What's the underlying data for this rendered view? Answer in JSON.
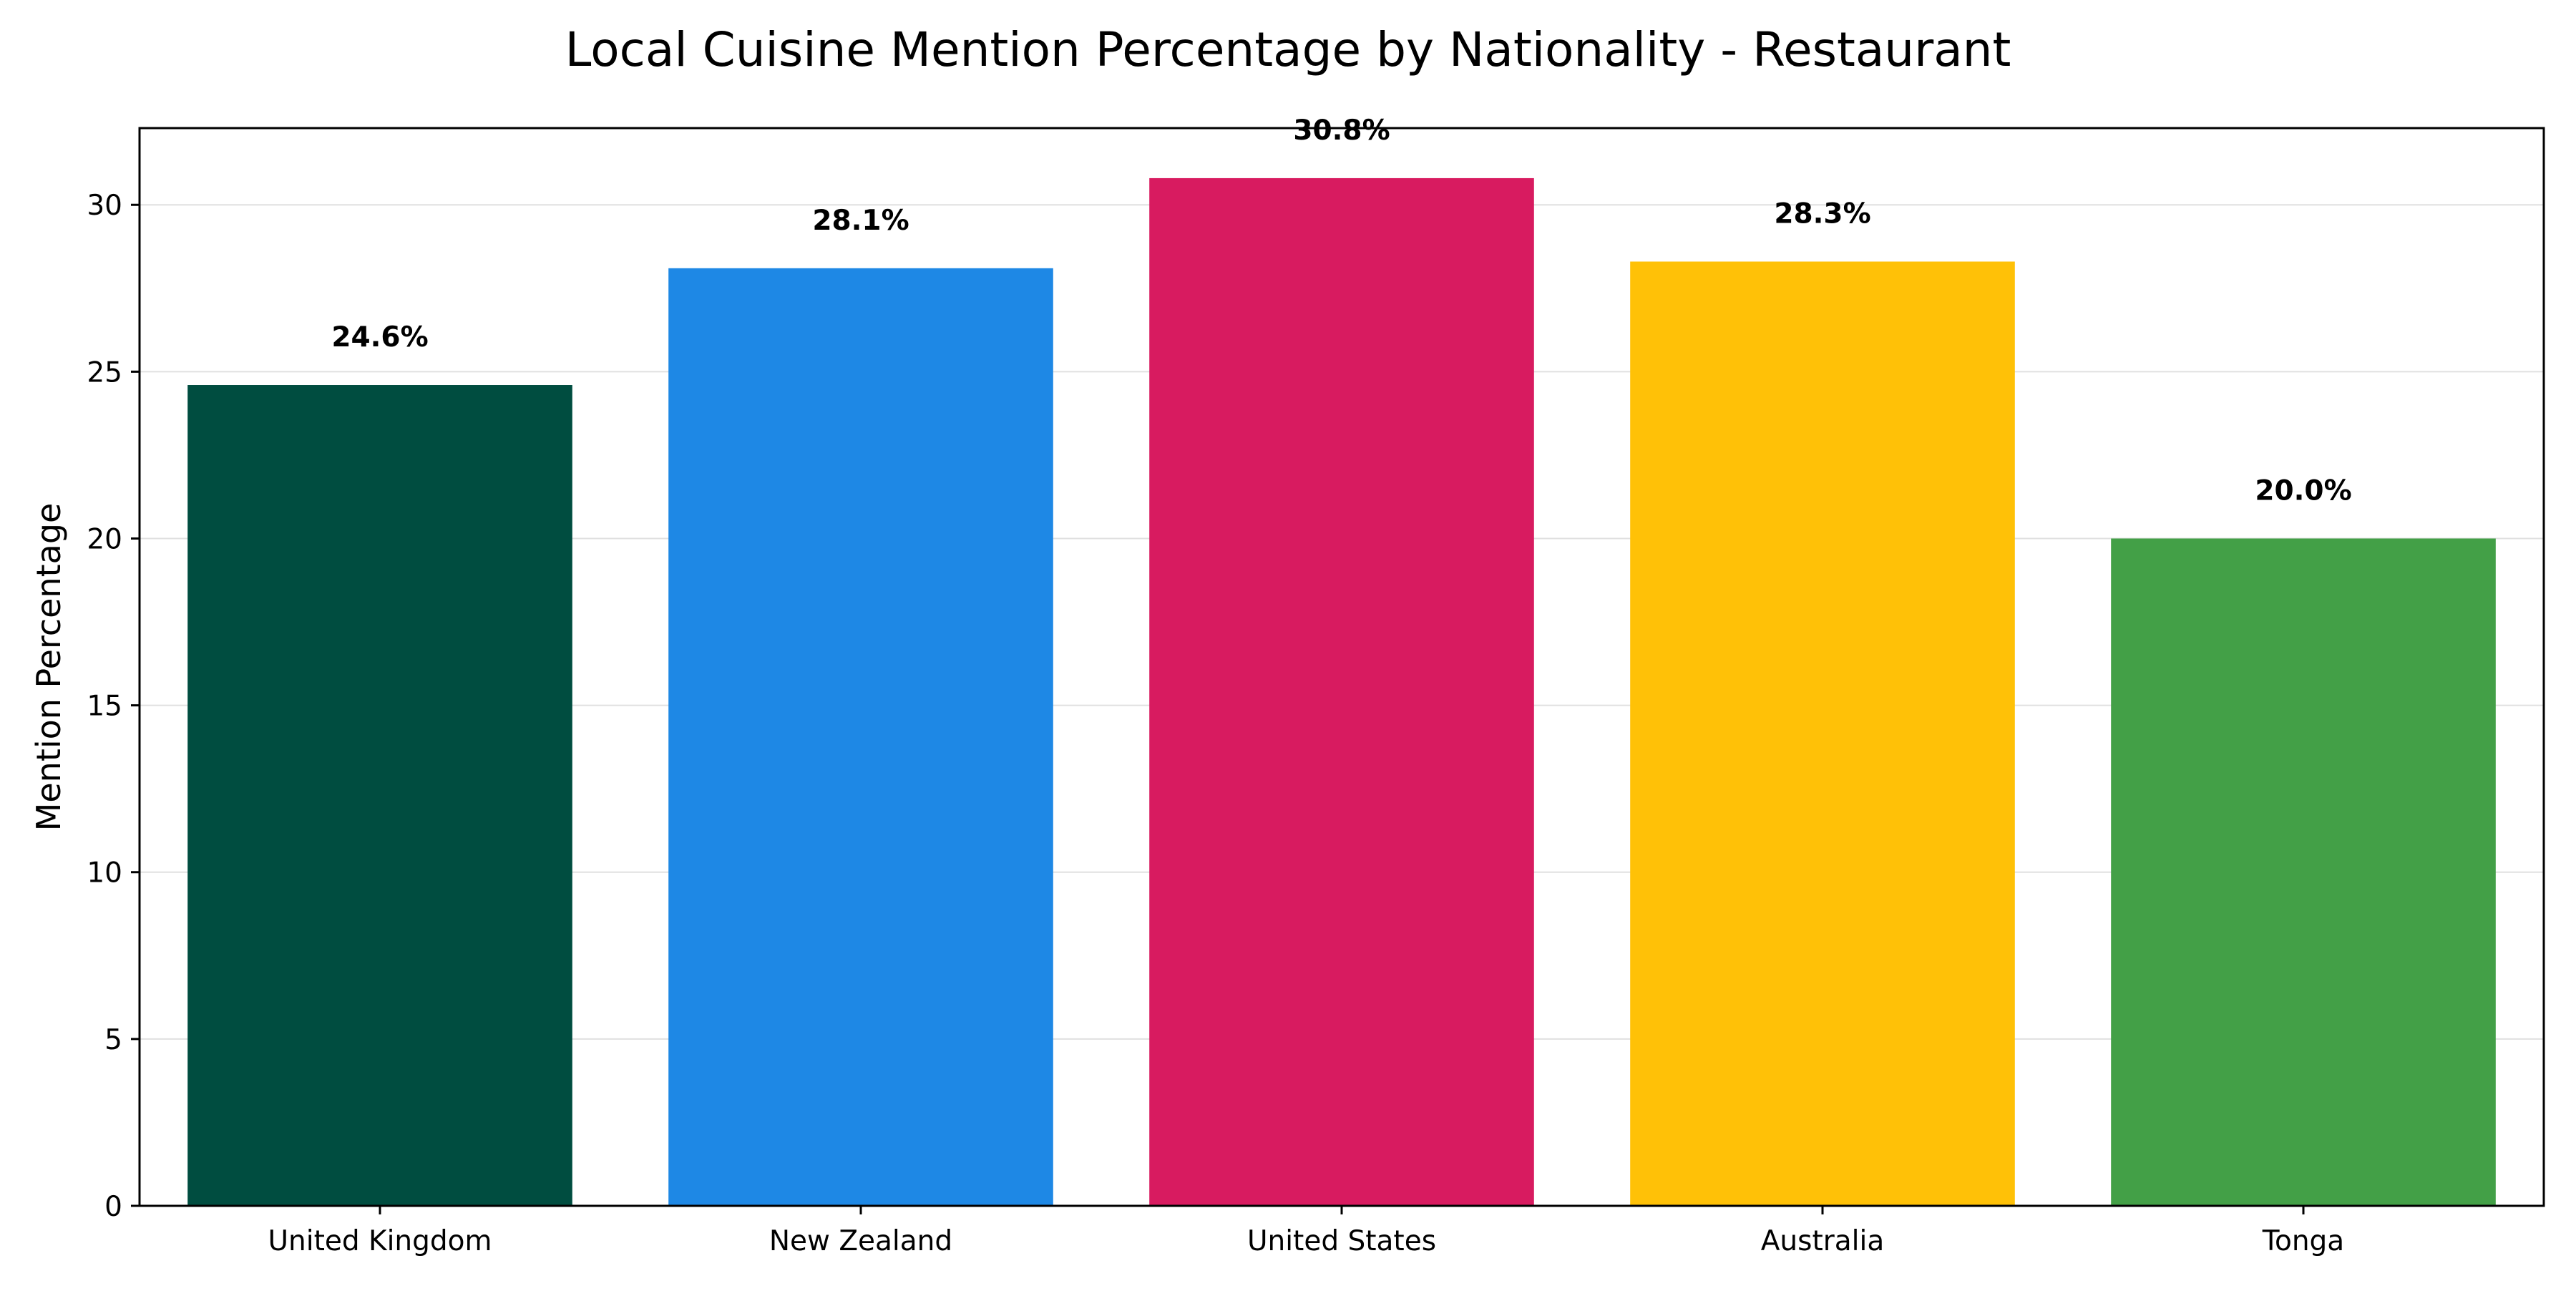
{
  "chart_data": {
    "type": "bar",
    "title": "Local Cuisine Mention Percentage by Nationality - Restaurant",
    "xlabel": "",
    "ylabel": "Mention Percentage",
    "categories": [
      "United Kingdom",
      "New Zealand",
      "United States",
      "Australia",
      "Tonga"
    ],
    "values": [
      24.6,
      28.1,
      30.8,
      28.3,
      20.0
    ],
    "data_labels": [
      "24.6%",
      "28.1%",
      "30.8%",
      "28.3%",
      "20.0%"
    ],
    "colors": [
      "#004d40",
      "#1e88e5",
      "#d81b60",
      "#ffc107",
      "#43a047"
    ],
    "ylim": [
      0,
      32.3
    ],
    "yticks": [
      0,
      5,
      10,
      15,
      20,
      25,
      30
    ],
    "grid": "horizontal",
    "legend": "none"
  }
}
